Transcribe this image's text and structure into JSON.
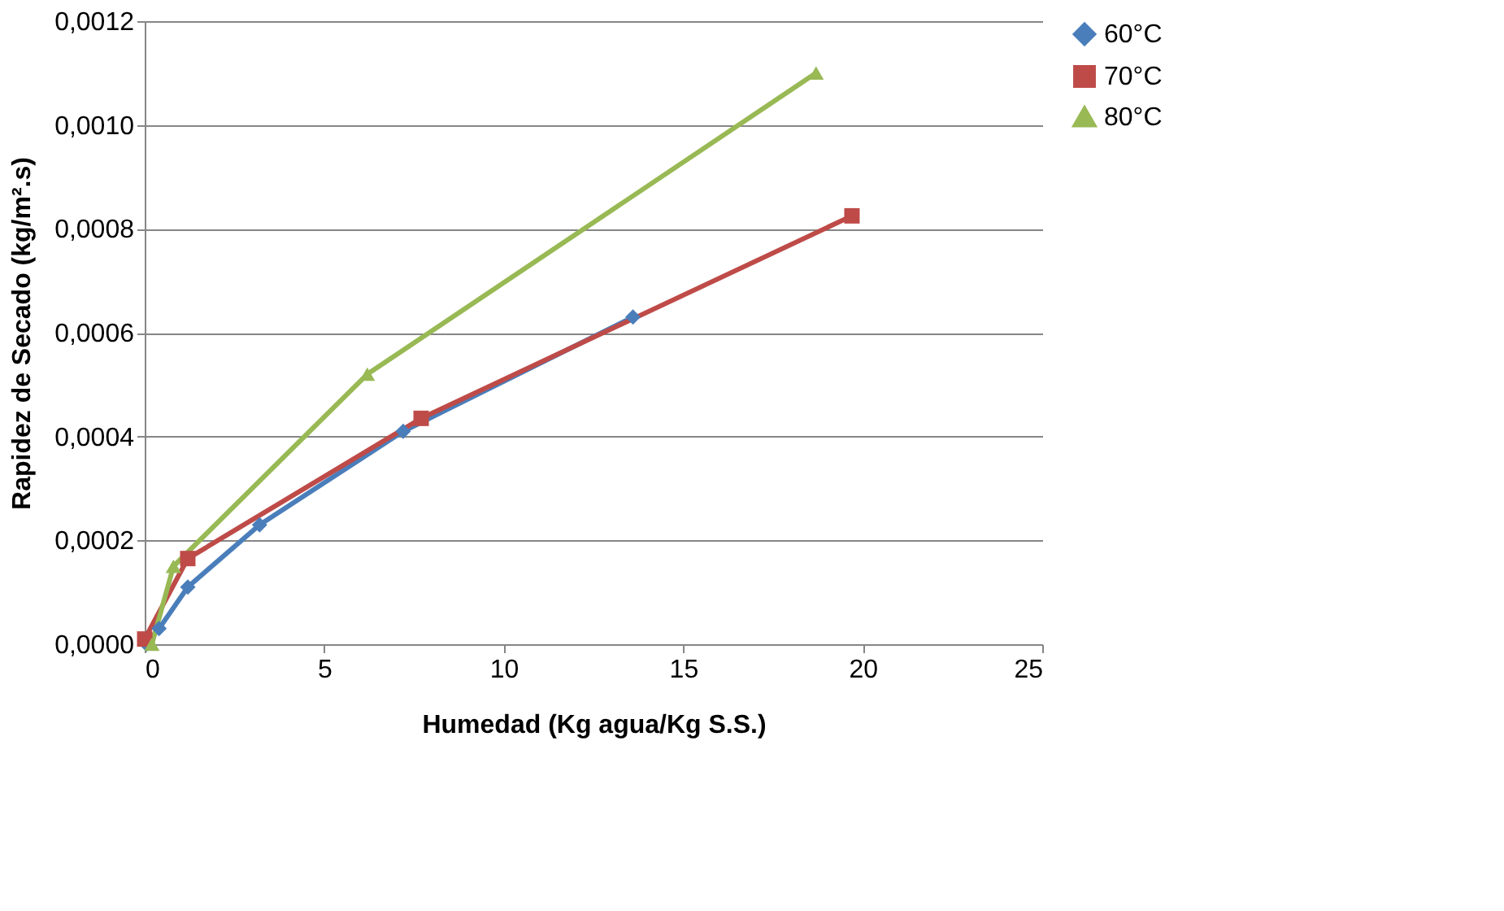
{
  "chart_data": {
    "type": "line",
    "xlabel": "Humedad (Kg agua/Kg S.S.)",
    "ylabel": "Rapidez de Secado (kg/m².s)",
    "xlim": [
      0,
      25
    ],
    "xticks": [
      0,
      5,
      10,
      15,
      20,
      25
    ],
    "ylim": [
      0,
      0.0012
    ],
    "yticks": [
      {
        "value": 0,
        "label": "0,0000"
      },
      {
        "value": 0.0002,
        "label": "0,0002"
      },
      {
        "value": 0.0004,
        "label": "0,0004"
      },
      {
        "value": 0.0006,
        "label": "0,0006"
      },
      {
        "value": 0.0008,
        "label": "0,0008"
      },
      {
        "value": 0.001,
        "label": "0,0010"
      },
      {
        "value": 0.0012,
        "label": "0,0012"
      }
    ],
    "grid": "y",
    "legend": "right",
    "line_style": "solid",
    "series": [
      {
        "name": "60°C",
        "color": "#4a7ebb",
        "marker": "diamond",
        "x": [
          0.05,
          0.4,
          1.2,
          3.2,
          7.2,
          13.6
        ],
        "values": [
          0,
          3e-05,
          0.00011,
          0.00023,
          0.00041,
          0.00063
        ]
      },
      {
        "name": "70°C",
        "color": "#be4b48",
        "marker": "square",
        "x": [
          0,
          1.2,
          7.7,
          19.7
        ],
        "values": [
          1e-05,
          0.000165,
          0.000435,
          0.000825
        ]
      },
      {
        "name": "80°C",
        "color": "#98b954",
        "marker": "triangle",
        "x": [
          0.2,
          0.8,
          6.2,
          18.7
        ],
        "values": [
          0,
          0.00015,
          0.00052,
          0.0011
        ]
      }
    ]
  }
}
